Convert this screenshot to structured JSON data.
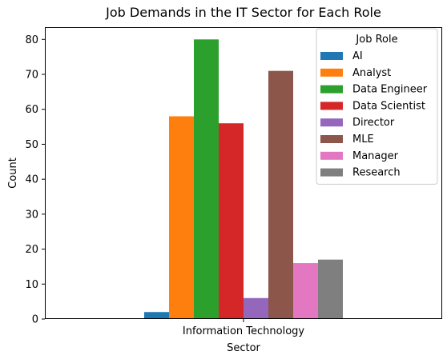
{
  "chart_data": {
    "type": "bar",
    "title": "Job Demands in the IT Sector for Each Role",
    "xlabel": "Sector",
    "ylabel": "Count",
    "categories": [
      "Information Technology"
    ],
    "ylim": [
      0,
      83.5
    ],
    "yticks": [
      0,
      10,
      20,
      30,
      40,
      50,
      60,
      70,
      80
    ],
    "grid": false,
    "legend": {
      "title": "Job Role",
      "placement": "top-right"
    },
    "series": [
      {
        "name": "AI",
        "values": [
          2
        ],
        "color": "#1f77b4"
      },
      {
        "name": "Analyst",
        "values": [
          58
        ],
        "color": "#ff7f0e"
      },
      {
        "name": "Data Engineer",
        "values": [
          80
        ],
        "color": "#2ca02c"
      },
      {
        "name": "Data Scientist",
        "values": [
          56
        ],
        "color": "#d62728"
      },
      {
        "name": "Director",
        "values": [
          6
        ],
        "color": "#9467bd"
      },
      {
        "name": "MLE",
        "values": [
          71
        ],
        "color": "#8c564b"
      },
      {
        "name": "Manager",
        "values": [
          16
        ],
        "color": "#e377c2"
      },
      {
        "name": "Research",
        "values": [
          17
        ],
        "color": "#7f7f7f"
      }
    ]
  }
}
